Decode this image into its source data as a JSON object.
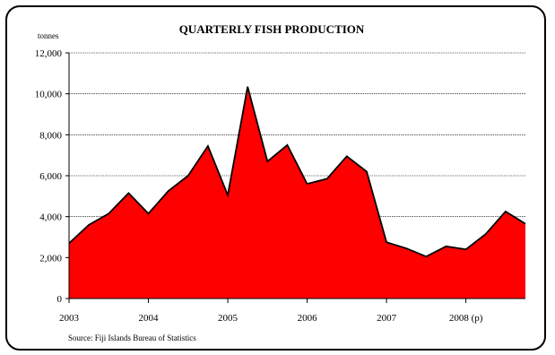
{
  "chart_data": {
    "type": "area",
    "title": "QUARTERLY FISH PRODUCTION",
    "ylabel": "tonnes",
    "xlabel": "",
    "source": "Source: Fiji Islands Bureau of Statistics",
    "ylim": [
      0,
      12000
    ],
    "yticks": [
      "0",
      "2,000",
      "4,000",
      "6,000",
      "8,000",
      "10,000",
      "12,000"
    ],
    "ytick_values": [
      0,
      2000,
      4000,
      6000,
      8000,
      10000,
      12000
    ],
    "x_year_labels": [
      "2003",
      "2004",
      "2005",
      "2006",
      "2007",
      "2008 (p)"
    ],
    "quarters_per_year": 4,
    "grid": true,
    "fill_color": "#ff0000",
    "series": [
      {
        "values": [
          2700,
          3600,
          4150,
          5150,
          4150,
          5250,
          6000,
          7450,
          5050,
          10350,
          6700,
          7500,
          5600,
          5850,
          6950,
          6200,
          2750,
          2450,
          2050,
          2550,
          2400,
          3150,
          4250,
          3650
        ]
      }
    ]
  }
}
